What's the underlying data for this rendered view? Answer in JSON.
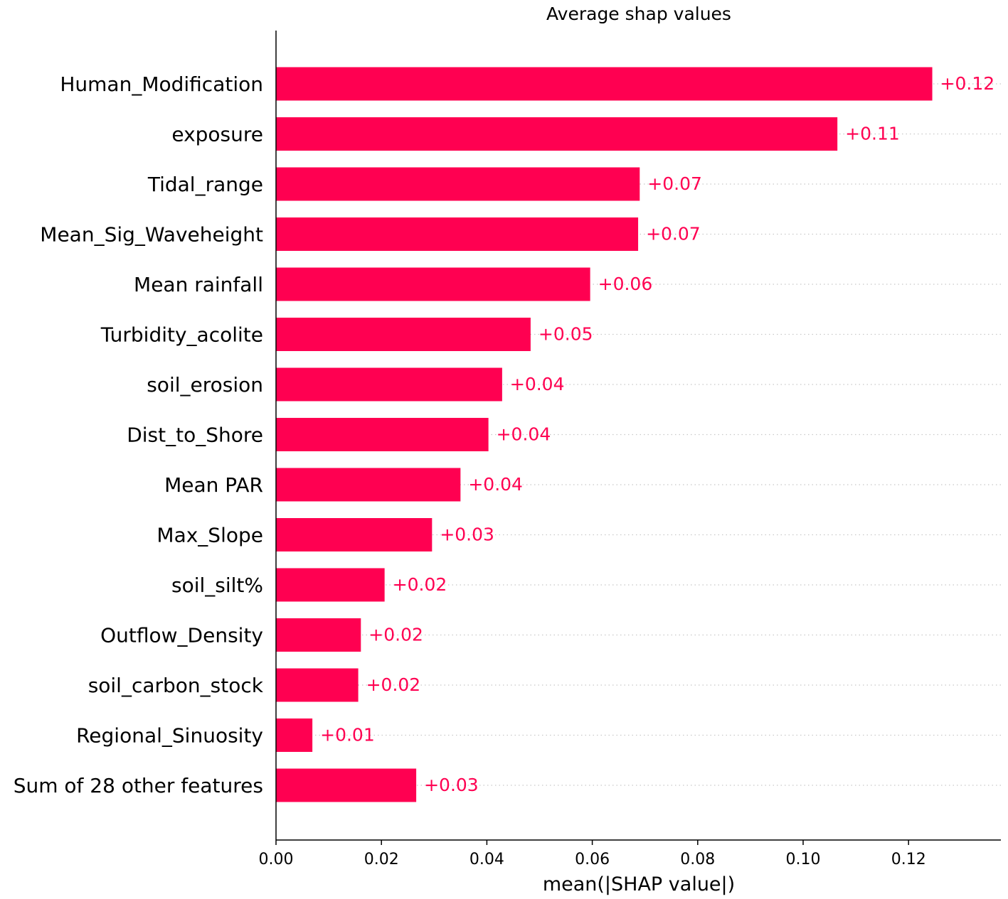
{
  "chart_data": {
    "type": "bar",
    "orientation": "horizontal",
    "title": "Average shap values",
    "xlabel": "mean(|SHAP value|)",
    "ylabel": "",
    "xlim": [
      0,
      0.137
    ],
    "xticks": [
      "0.00",
      "0.02",
      "0.04",
      "0.06",
      "0.08",
      "0.10",
      "0.12"
    ],
    "grid": "dotted row lines",
    "legend": "none",
    "bar_color": "#ff0051",
    "categories": [
      "Human_Modification",
      "exposure",
      "Tidal_range",
      "Mean_Sig_Waveheight",
      "Mean rainfall",
      "Turbidity_acolite",
      "soil_erosion",
      "Dist_to_Shore",
      "Mean PAR",
      "Max_Slope",
      "soil_silt%",
      "Outflow_Density",
      "soil_carbon_stock",
      "Regional_Sinuosity",
      "Sum of 28 other features"
    ],
    "values": [
      0.1245,
      0.1065,
      0.069,
      0.0687,
      0.0596,
      0.0483,
      0.0429,
      0.0403,
      0.035,
      0.0296,
      0.0206,
      0.0161,
      0.0156,
      0.0069,
      0.0266
    ],
    "value_labels": [
      "+0.12",
      "+0.11",
      "+0.07",
      "+0.07",
      "+0.06",
      "+0.05",
      "+0.04",
      "+0.04",
      "+0.04",
      "+0.03",
      "+0.02",
      "+0.02",
      "+0.02",
      "+0.01",
      "+0.03"
    ]
  }
}
